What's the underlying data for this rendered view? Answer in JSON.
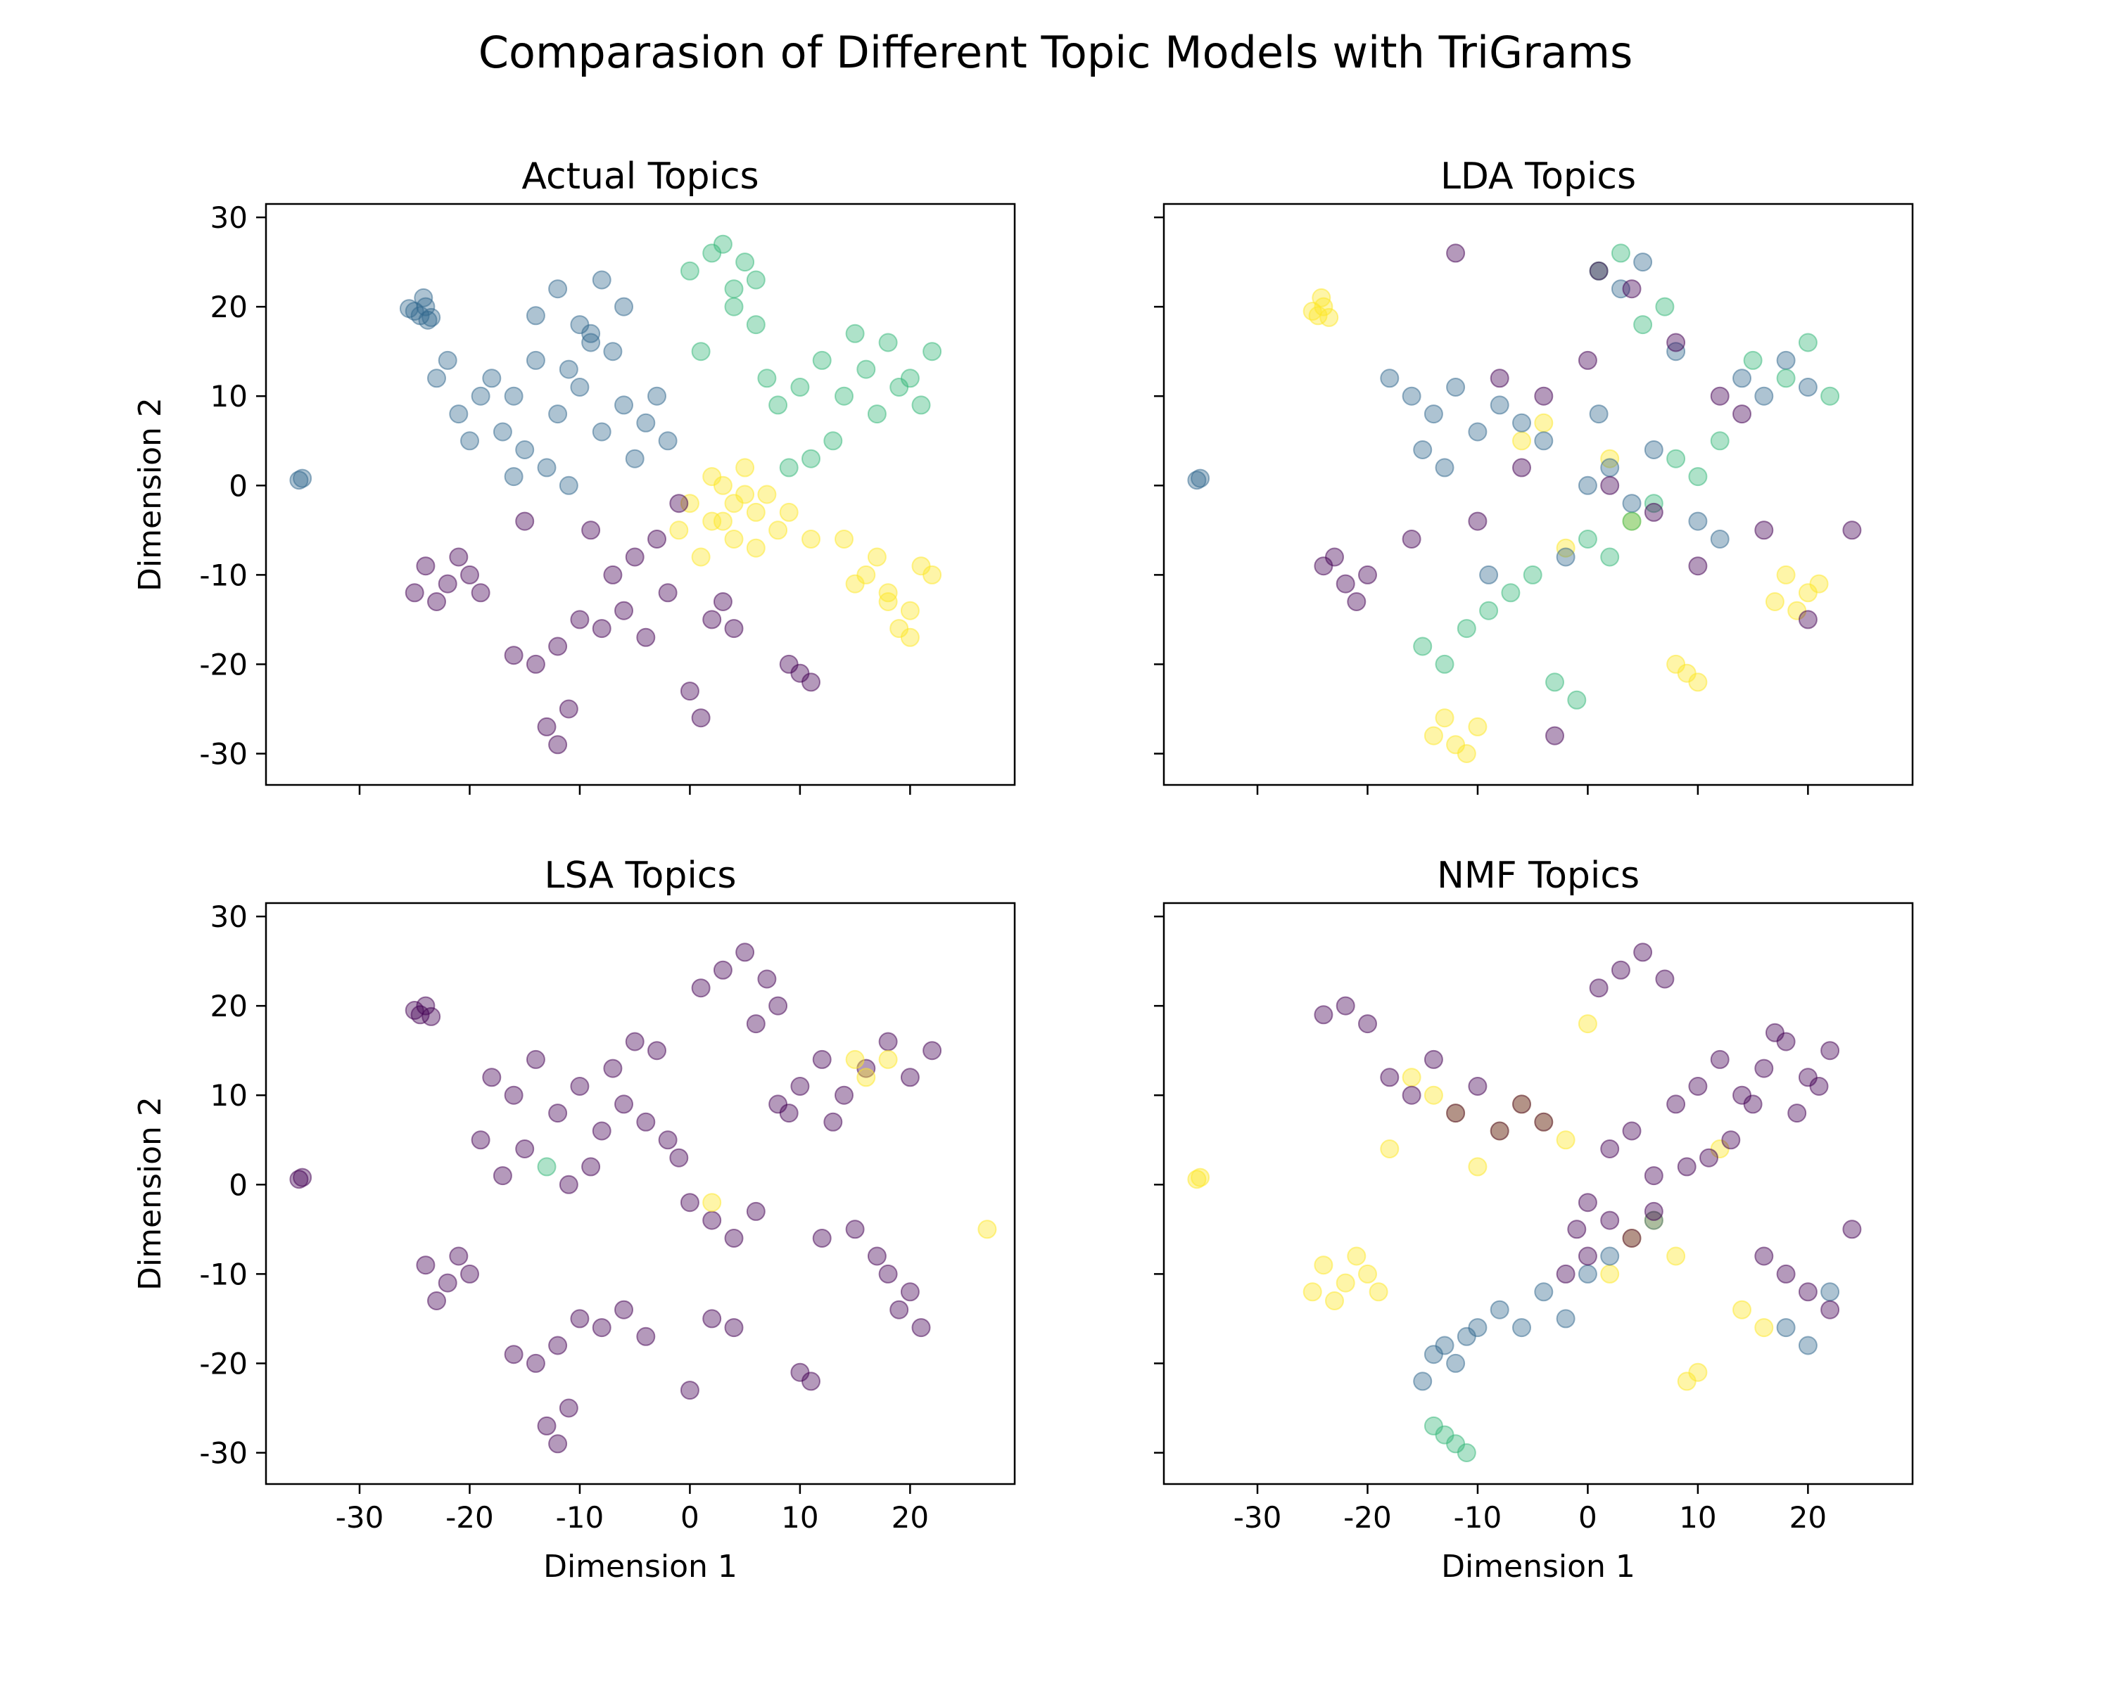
{
  "figure": {
    "title": "Comparasion of Different Topic Models with TriGrams"
  },
  "palette": {
    "0": "#440154",
    "1": "#31688e",
    "2": "#35b779",
    "3": "#fde725"
  },
  "chart_data": [
    {
      "type": "scatter",
      "title": "Actual Topics",
      "xlabel": "",
      "ylabel": "Dimension 2",
      "xlim": [
        -38.5,
        29.5
      ],
      "ylim": [
        -33.5,
        31.5
      ],
      "xticks": [
        "-30",
        "-20",
        "-10",
        "0",
        "10",
        "20"
      ],
      "yticks": [
        "30",
        "20",
        "10",
        "0",
        "-10",
        "-20",
        "-30"
      ],
      "show_xtick_labels": false,
      "show_ytick_labels": true,
      "point_alpha": 0.4,
      "clusters": [
        {
          "x": [
            -35.5,
            -35.2
          ],
          "y": [
            0.6,
            0.8
          ],
          "color_topic": 1
        },
        {
          "x": [
            -24.5,
            -24.0,
            -25.0,
            -23.5,
            -24.2,
            -25.5,
            -23.8
          ],
          "y": [
            19.0,
            20.0,
            19.5,
            18.8,
            21.0,
            19.8,
            18.5
          ],
          "color_topic": 1
        },
        {
          "x": [
            -18,
            -16,
            -14,
            -12,
            -10,
            -8,
            -6,
            -4,
            -2,
            -15,
            -13,
            -11,
            -9,
            -7,
            -5,
            -17,
            -19,
            -21,
            -23,
            -14,
            -12,
            -10,
            -8,
            -6,
            -3,
            -20,
            -22,
            -16,
            -11,
            -9
          ],
          "y": [
            12,
            10,
            14,
            8,
            11,
            6,
            9,
            7,
            5,
            4,
            2,
            13,
            16,
            15,
            3,
            6,
            10,
            8,
            12,
            19,
            22,
            18,
            23,
            20,
            10,
            5,
            14,
            1,
            0,
            17
          ],
          "color_topic": 1
        },
        {
          "x": [
            0,
            2,
            4,
            6,
            3,
            5,
            1,
            7,
            8,
            10,
            12,
            14,
            16,
            18,
            20,
            22,
            15,
            17,
            19,
            21,
            13,
            11,
            9,
            6,
            4
          ],
          "y": [
            24,
            26,
            22,
            23,
            27,
            25,
            15,
            12,
            9,
            11,
            14,
            10,
            13,
            16,
            12,
            15,
            17,
            8,
            11,
            9,
            5,
            3,
            2,
            18,
            20
          ],
          "color_topic": 2
        },
        {
          "x": [
            0,
            2,
            4,
            6,
            8,
            3,
            5,
            1,
            7,
            -1,
            2,
            4,
            6,
            3,
            16,
            18,
            20,
            17,
            19,
            15,
            14,
            21,
            18,
            20,
            22,
            5,
            9,
            11
          ],
          "y": [
            -2,
            -4,
            -6,
            -3,
            -5,
            0,
            2,
            -8,
            -1,
            -5,
            1,
            -2,
            -7,
            -4,
            -10,
            -12,
            -14,
            -8,
            -16,
            -11,
            -6,
            -9,
            -13,
            -17,
            -10,
            -1,
            -3,
            -6
          ],
          "color_topic": 3
        },
        {
          "x": [
            -24,
            -22,
            -20,
            -23,
            -21,
            -19,
            -25,
            -16,
            -14,
            -12,
            -10,
            -8,
            -6,
            -4,
            -2,
            0,
            2,
            4,
            -13,
            -12,
            -11,
            -7,
            -5,
            -3,
            10,
            11,
            9,
            -15,
            -9,
            -1,
            3,
            1
          ],
          "y": [
            -9,
            -11,
            -10,
            -13,
            -8,
            -12,
            -12,
            -19,
            -20,
            -18,
            -15,
            -16,
            -14,
            -17,
            -12,
            -23,
            -15,
            -16,
            -27,
            -29,
            -25,
            -10,
            -8,
            -6,
            -21,
            -22,
            -20,
            -4,
            -5,
            -2,
            -13,
            -26
          ],
          "color_topic": 0
        }
      ]
    },
    {
      "type": "scatter",
      "title": "LDA Topics",
      "xlabel": "",
      "ylabel": "",
      "xlim": [
        -38.5,
        29.5
      ],
      "ylim": [
        -33.5,
        31.5
      ],
      "xticks": [
        "-30",
        "-20",
        "-10",
        "0",
        "10",
        "20"
      ],
      "yticks": [
        "30",
        "20",
        "10",
        "0",
        "-10",
        "-20",
        "-30"
      ],
      "show_xtick_labels": false,
      "show_ytick_labels": false,
      "point_alpha": 0.4,
      "clusters": [
        {
          "x": [
            -35.5,
            -35.2
          ],
          "y": [
            0.6,
            0.8
          ],
          "color_topic": 1
        },
        {
          "x": [
            -24.5,
            -24.0,
            -25.0,
            -23.5,
            -24.2,
            -14,
            -12,
            -13,
            -11,
            -10,
            18,
            20,
            19,
            21,
            17,
            9,
            10,
            8,
            -6,
            -4,
            2,
            4,
            -2
          ],
          "y": [
            19.0,
            20.0,
            19.5,
            18.8,
            21.0,
            -28,
            -29,
            -26,
            -30,
            -27,
            -10,
            -12,
            -14,
            -11,
            -13,
            -21,
            -22,
            -20,
            5,
            7,
            3,
            -4,
            -7
          ],
          "color_topic": 3
        },
        {
          "x": [
            -18,
            -16,
            -14,
            -12,
            -10,
            -8,
            -6,
            -4,
            -15,
            -13,
            0,
            2,
            4,
            6,
            3,
            5,
            14,
            16,
            18,
            20,
            10,
            12,
            -2,
            1,
            8,
            -9
          ],
          "y": [
            12,
            10,
            8,
            11,
            6,
            9,
            7,
            5,
            4,
            2,
            0,
            2,
            -2,
            4,
            22,
            25,
            12,
            10,
            14,
            11,
            -4,
            -6,
            -8,
            8,
            15,
            -10
          ],
          "color_topic": 1
        },
        {
          "x": [
            -15,
            -13,
            -11,
            -9,
            -7,
            -5,
            0,
            2,
            4,
            6,
            3,
            1,
            8,
            10,
            12,
            15,
            18,
            20,
            22,
            -3,
            -1,
            5,
            7
          ],
          "y": [
            -18,
            -20,
            -16,
            -14,
            -12,
            -10,
            -6,
            -8,
            -4,
            -2,
            26,
            24,
            3,
            1,
            5,
            14,
            12,
            16,
            10,
            -22,
            -24,
            18,
            20
          ],
          "color_topic": 2
        },
        {
          "x": [
            -24,
            -22,
            -20,
            -21,
            -23,
            -16,
            -12,
            -8,
            -4,
            0,
            4,
            8,
            12,
            16,
            20,
            2,
            6,
            10,
            -6,
            -10,
            14,
            24,
            -3,
            1
          ],
          "y": [
            -9,
            -11,
            -10,
            -13,
            -8,
            -6,
            26,
            12,
            10,
            14,
            22,
            16,
            10,
            -5,
            -15,
            0,
            -3,
            -9,
            2,
            -4,
            8,
            -5,
            -28,
            24
          ],
          "color_topic": 0
        }
      ]
    },
    {
      "type": "scatter",
      "title": "LSA Topics",
      "xlabel": "Dimension 1",
      "ylabel": "Dimension 2",
      "xlim": [
        -38.5,
        29.5
      ],
      "ylim": [
        -33.5,
        31.5
      ],
      "xticks": [
        "-30",
        "-20",
        "-10",
        "0",
        "10",
        "20"
      ],
      "yticks": [
        "30",
        "20",
        "10",
        "0",
        "-10",
        "-20",
        "-30"
      ],
      "show_xtick_labels": true,
      "show_ytick_labels": true,
      "point_alpha": 0.4,
      "clusters": [
        {
          "x": [
            -35.5,
            -35.2,
            -24.5,
            -24,
            -25,
            -23.5,
            -18,
            -16,
            -14,
            -12,
            -10,
            -8,
            -6,
            -4,
            -2,
            0,
            2,
            4,
            6,
            3,
            5,
            1,
            7,
            8,
            10,
            12,
            14,
            16,
            18,
            20,
            22,
            -24,
            -22,
            -20,
            -23,
            -21,
            -16,
            -14,
            -12,
            -10,
            -8,
            -6,
            -4,
            0,
            2,
            4,
            -13,
            -12,
            -11,
            10,
            11,
            18,
            20,
            19,
            17,
            21,
            -15,
            -9,
            -7,
            -5,
            -3,
            -1,
            6,
            8,
            12,
            15,
            -19,
            -17,
            -11,
            9,
            13
          ],
          "y": [
            0.6,
            0.8,
            19,
            20,
            19.5,
            18.8,
            12,
            10,
            14,
            8,
            11,
            6,
            9,
            7,
            5,
            -2,
            -4,
            -6,
            -3,
            24,
            26,
            22,
            23,
            9,
            11,
            14,
            10,
            13,
            16,
            12,
            15,
            -9,
            -11,
            -10,
            -13,
            -8,
            -19,
            -20,
            -18,
            -15,
            -16,
            -14,
            -17,
            -23,
            -15,
            -16,
            -27,
            -29,
            -25,
            -21,
            -22,
            -10,
            -12,
            -14,
            -8,
            -16,
            4,
            2,
            13,
            16,
            15,
            3,
            18,
            20,
            -6,
            -5,
            5,
            1,
            0,
            8,
            7
          ],
          "color_topic": 0
        },
        {
          "x": [
            15,
            18,
            2,
            16,
            27
          ],
          "y": [
            14,
            14,
            -2,
            12,
            -5
          ],
          "color_topic": 3
        },
        {
          "x": [
            -13
          ],
          "y": [
            2
          ],
          "color_topic": 2
        }
      ]
    },
    {
      "type": "scatter",
      "title": "NMF Topics",
      "xlabel": "Dimension 1",
      "ylabel": "",
      "xlim": [
        -38.5,
        29.5
      ],
      "ylim": [
        -33.5,
        31.5
      ],
      "xticks": [
        "-30",
        "-20",
        "-10",
        "0",
        "10",
        "20"
      ],
      "yticks": [
        "30",
        "20",
        "10",
        "0",
        "-10",
        "-20",
        "-30"
      ],
      "show_xtick_labels": true,
      "show_ytick_labels": false,
      "point_alpha": 0.4,
      "clusters": [
        {
          "x": [
            -35.5,
            -35.2
          ],
          "y": [
            0.6,
            0.8
          ],
          "color_topic": 3
        },
        {
          "x": [
            -24,
            -22,
            -20,
            -23,
            -21,
            -19,
            -25,
            -16,
            -14,
            -12,
            -8,
            -6,
            -4,
            -2,
            2,
            4,
            6,
            8,
            10,
            9,
            -18,
            -10,
            14,
            16,
            0,
            12
          ],
          "y": [
            -9,
            -11,
            -10,
            -13,
            -8,
            -12,
            -12,
            12,
            10,
            8,
            6,
            9,
            7,
            5,
            -10,
            -6,
            -4,
            -8,
            -21,
            -22,
            4,
            2,
            -14,
            -16,
            18,
            4
          ],
          "color_topic": 3
        },
        {
          "x": [
            -14,
            -12,
            -13,
            -11,
            -10,
            -15,
            -8,
            -6,
            -4,
            -2,
            0,
            2,
            6,
            18,
            20,
            22
          ],
          "y": [
            -19,
            -20,
            -18,
            -17,
            -16,
            -22,
            -14,
            -16,
            -12,
            -15,
            -10,
            -8,
            -4,
            -16,
            -18,
            -12
          ],
          "color_topic": 1
        },
        {
          "x": [
            -13,
            -12,
            -14,
            -11
          ],
          "y": [
            -28,
            -29,
            -27,
            -30
          ],
          "color_topic": 2
        },
        {
          "x": [
            -24,
            -22,
            -20,
            -18,
            -16,
            -14,
            -12,
            -10,
            -8,
            -6,
            -4,
            0,
            2,
            4,
            6,
            3,
            5,
            1,
            7,
            8,
            10,
            12,
            14,
            16,
            18,
            20,
            22,
            17,
            19,
            21,
            15,
            13,
            11,
            9,
            2,
            4,
            6,
            0,
            -2,
            -1,
            18,
            20,
            22,
            24,
            16
          ],
          "y": [
            19,
            20,
            18,
            12,
            10,
            14,
            8,
            11,
            6,
            9,
            7,
            -2,
            -4,
            -6,
            -3,
            24,
            26,
            22,
            23,
            9,
            11,
            14,
            10,
            13,
            16,
            12,
            15,
            17,
            8,
            11,
            9,
            5,
            3,
            2,
            4,
            6,
            1,
            -8,
            -10,
            -5,
            -10,
            -12,
            -14,
            -5,
            -8
          ],
          "color_topic": 0
        }
      ]
    }
  ]
}
